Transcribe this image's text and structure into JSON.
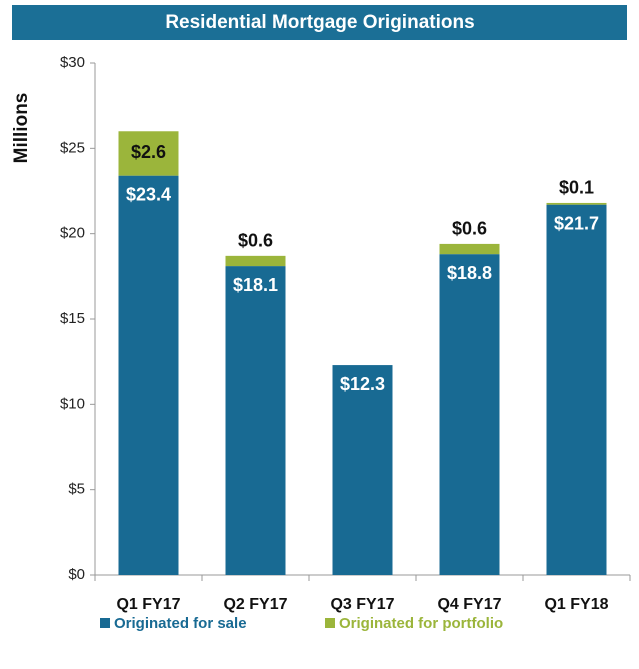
{
  "chart_data": {
    "type": "stacked_bar",
    "title": "Residential Mortgage Originations",
    "y_label": "Millions",
    "categories": [
      "Q1 FY17",
      "Q2 FY17",
      "Q3 FY17",
      "Q4 FY17",
      "Q1 FY18"
    ],
    "series": [
      {
        "name": "Originated for sale",
        "color": "#186a93",
        "values": [
          23.4,
          18.1,
          12.3,
          18.8,
          21.7
        ],
        "value_labels": [
          "$23.4",
          "$18.1",
          "$12.3",
          "$18.8",
          "$21.7"
        ]
      },
      {
        "name": "Originated for portfolio",
        "color": "#9bb53b",
        "values": [
          2.6,
          0.6,
          null,
          0.6,
          0.1
        ],
        "value_labels": [
          "$2.6",
          "$0.6",
          null,
          "$0.6",
          "$0.1"
        ]
      }
    ],
    "ylim": [
      0,
      30
    ],
    "yticks": [
      {
        "value": 0,
        "label": "$0"
      },
      {
        "value": 5,
        "label": "$5"
      },
      {
        "value": 10,
        "label": "$10"
      },
      {
        "value": 15,
        "label": "$15"
      },
      {
        "value": 20,
        "label": "$20"
      },
      {
        "value": 25,
        "label": "$25"
      },
      {
        "value": 30,
        "label": "$30"
      }
    ],
    "title_color": "#1b6f96"
  }
}
